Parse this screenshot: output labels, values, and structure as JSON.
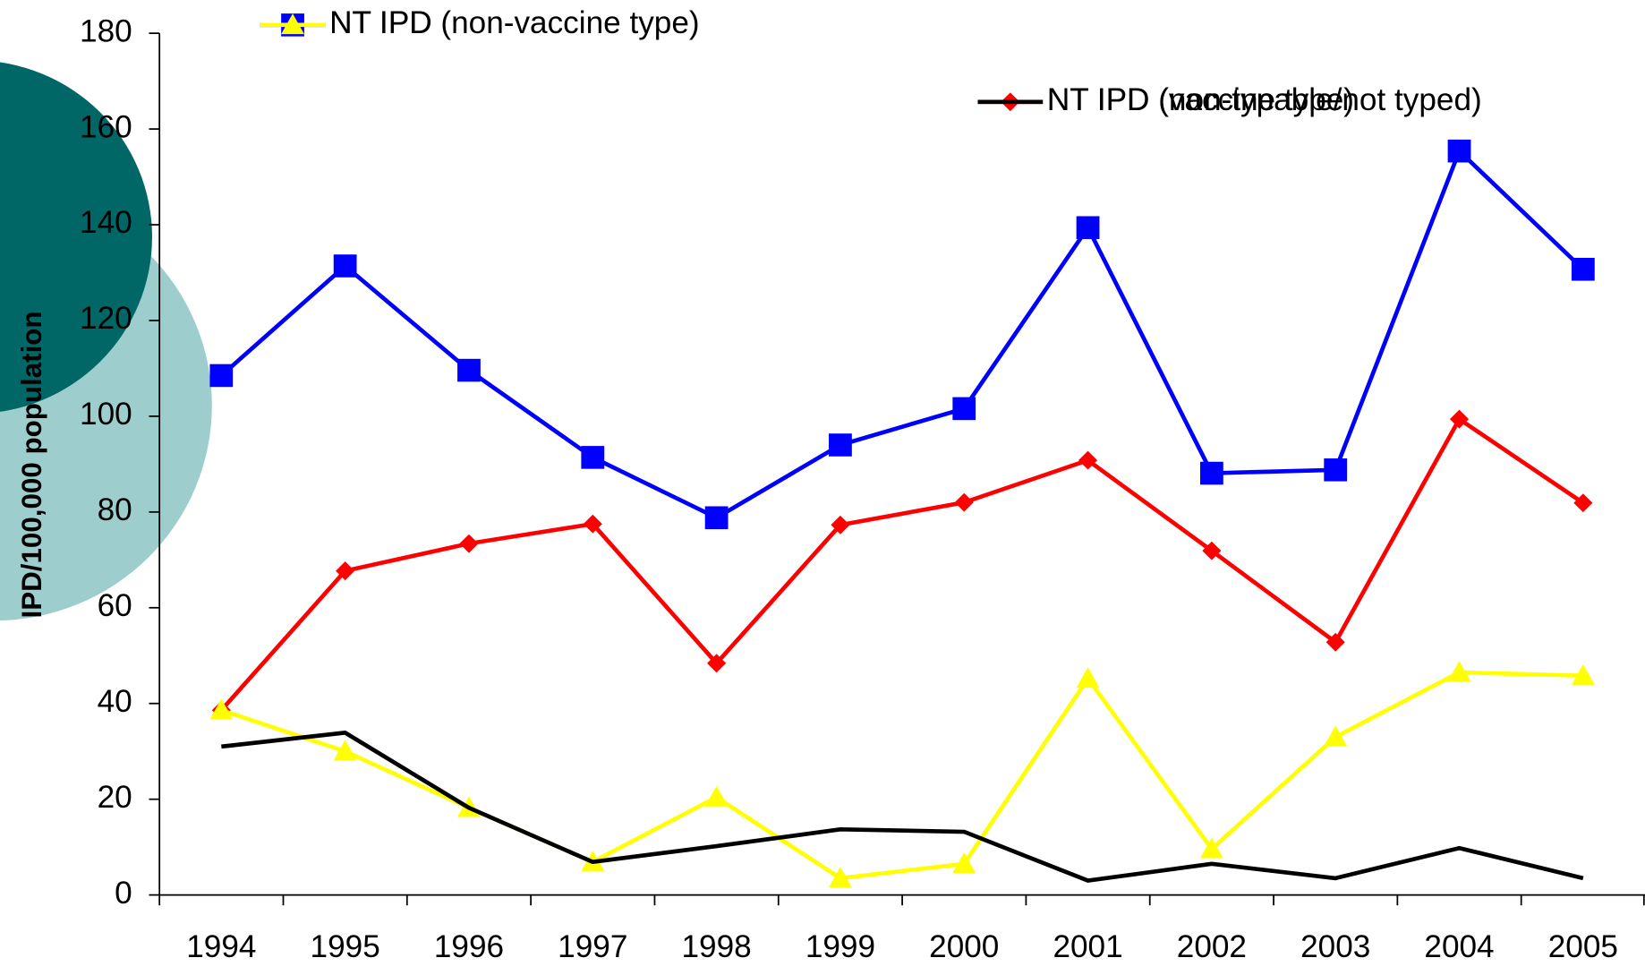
{
  "chart_data": {
    "type": "line",
    "y_label": "IPD/100,000 population",
    "categories": [
      "1994",
      "1995",
      "1996",
      "1997",
      "1998",
      "1999",
      "2000",
      "2001",
      "2002",
      "2003",
      "2004",
      "2005"
    ],
    "series": [
      {
        "name": "NT IPD",
        "color": "#0000ff",
        "marker": "square",
        "values": [
          108.5,
          131.4,
          109.6,
          91.4,
          78.8,
          94,
          101.6,
          139.4,
          88.1,
          88.8,
          155.4,
          130.7
        ]
      },
      {
        "name": "NT IPD (vaccine type)",
        "color": "#ff0000",
        "marker": "diamond",
        "values": [
          38.6,
          67.7,
          73.4,
          77.5,
          48.4,
          77.3,
          82,
          90.8,
          71.9,
          52.8,
          99.4,
          81.9
        ]
      },
      {
        "name": "NT IPD (non-vaccine type)",
        "color": "#ffff00",
        "marker": "triangle",
        "values": [
          38.6,
          30,
          18.2,
          6.9,
          20.4,
          3.5,
          6.5,
          45.2,
          9.6,
          33,
          46.5,
          45.8
        ]
      },
      {
        "name": "NT IPD (non-typable/not typed)",
        "color": "#000000",
        "marker": "none",
        "values": [
          31,
          33.9,
          18.2,
          6.9,
          10.2,
          13.7,
          13.2,
          3,
          6.5,
          3.5,
          9.8,
          3.5
        ]
      }
    ],
    "ylim": [
      0,
      180
    ],
    "yticks": [
      0,
      20,
      40,
      60,
      80,
      100,
      120,
      140,
      160,
      180
    ]
  }
}
